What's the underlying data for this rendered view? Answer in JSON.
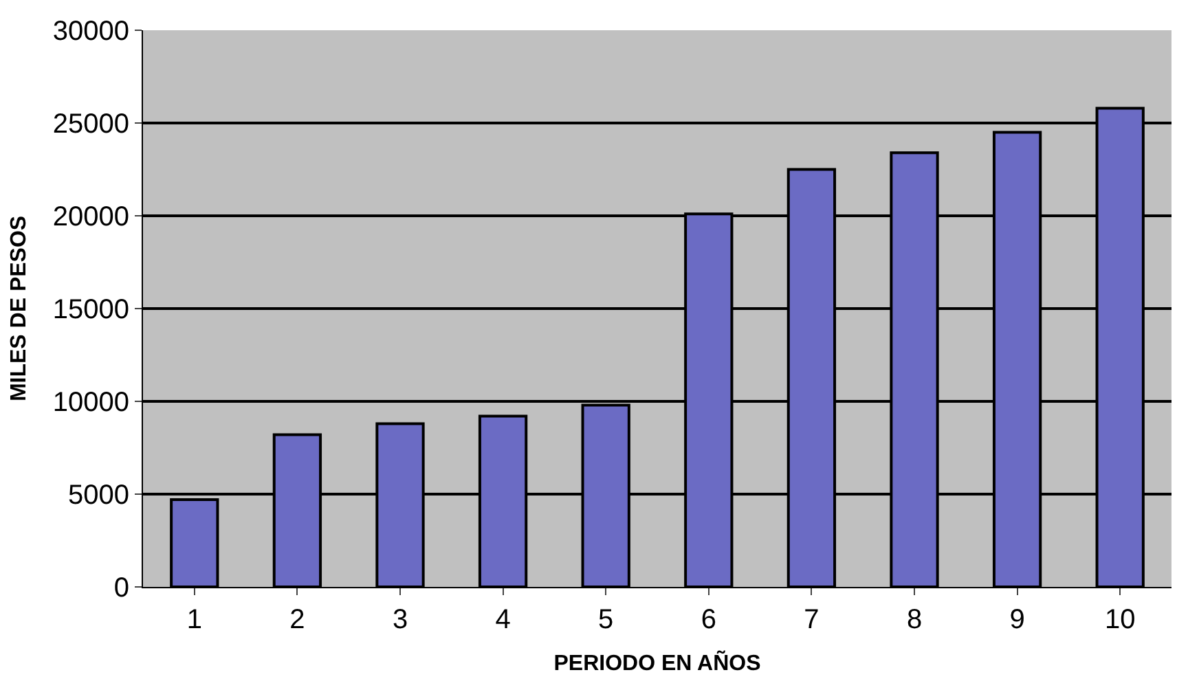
{
  "chart_data": {
    "type": "bar",
    "xlabel": "PERIODO EN AÑOS",
    "ylabel": "MILES DE PESOS",
    "categories": [
      "1",
      "2",
      "3",
      "4",
      "5",
      "6",
      "7",
      "8",
      "9",
      "10"
    ],
    "values": [
      4700,
      8200,
      8800,
      9200,
      9800,
      20100,
      22500,
      23400,
      24500,
      25800
    ],
    "color": "#6b6bc4",
    "ylim": [
      0,
      30000
    ],
    "yticks": [
      0,
      5000,
      10000,
      15000,
      20000,
      25000,
      30000
    ],
    "grid": "y"
  }
}
